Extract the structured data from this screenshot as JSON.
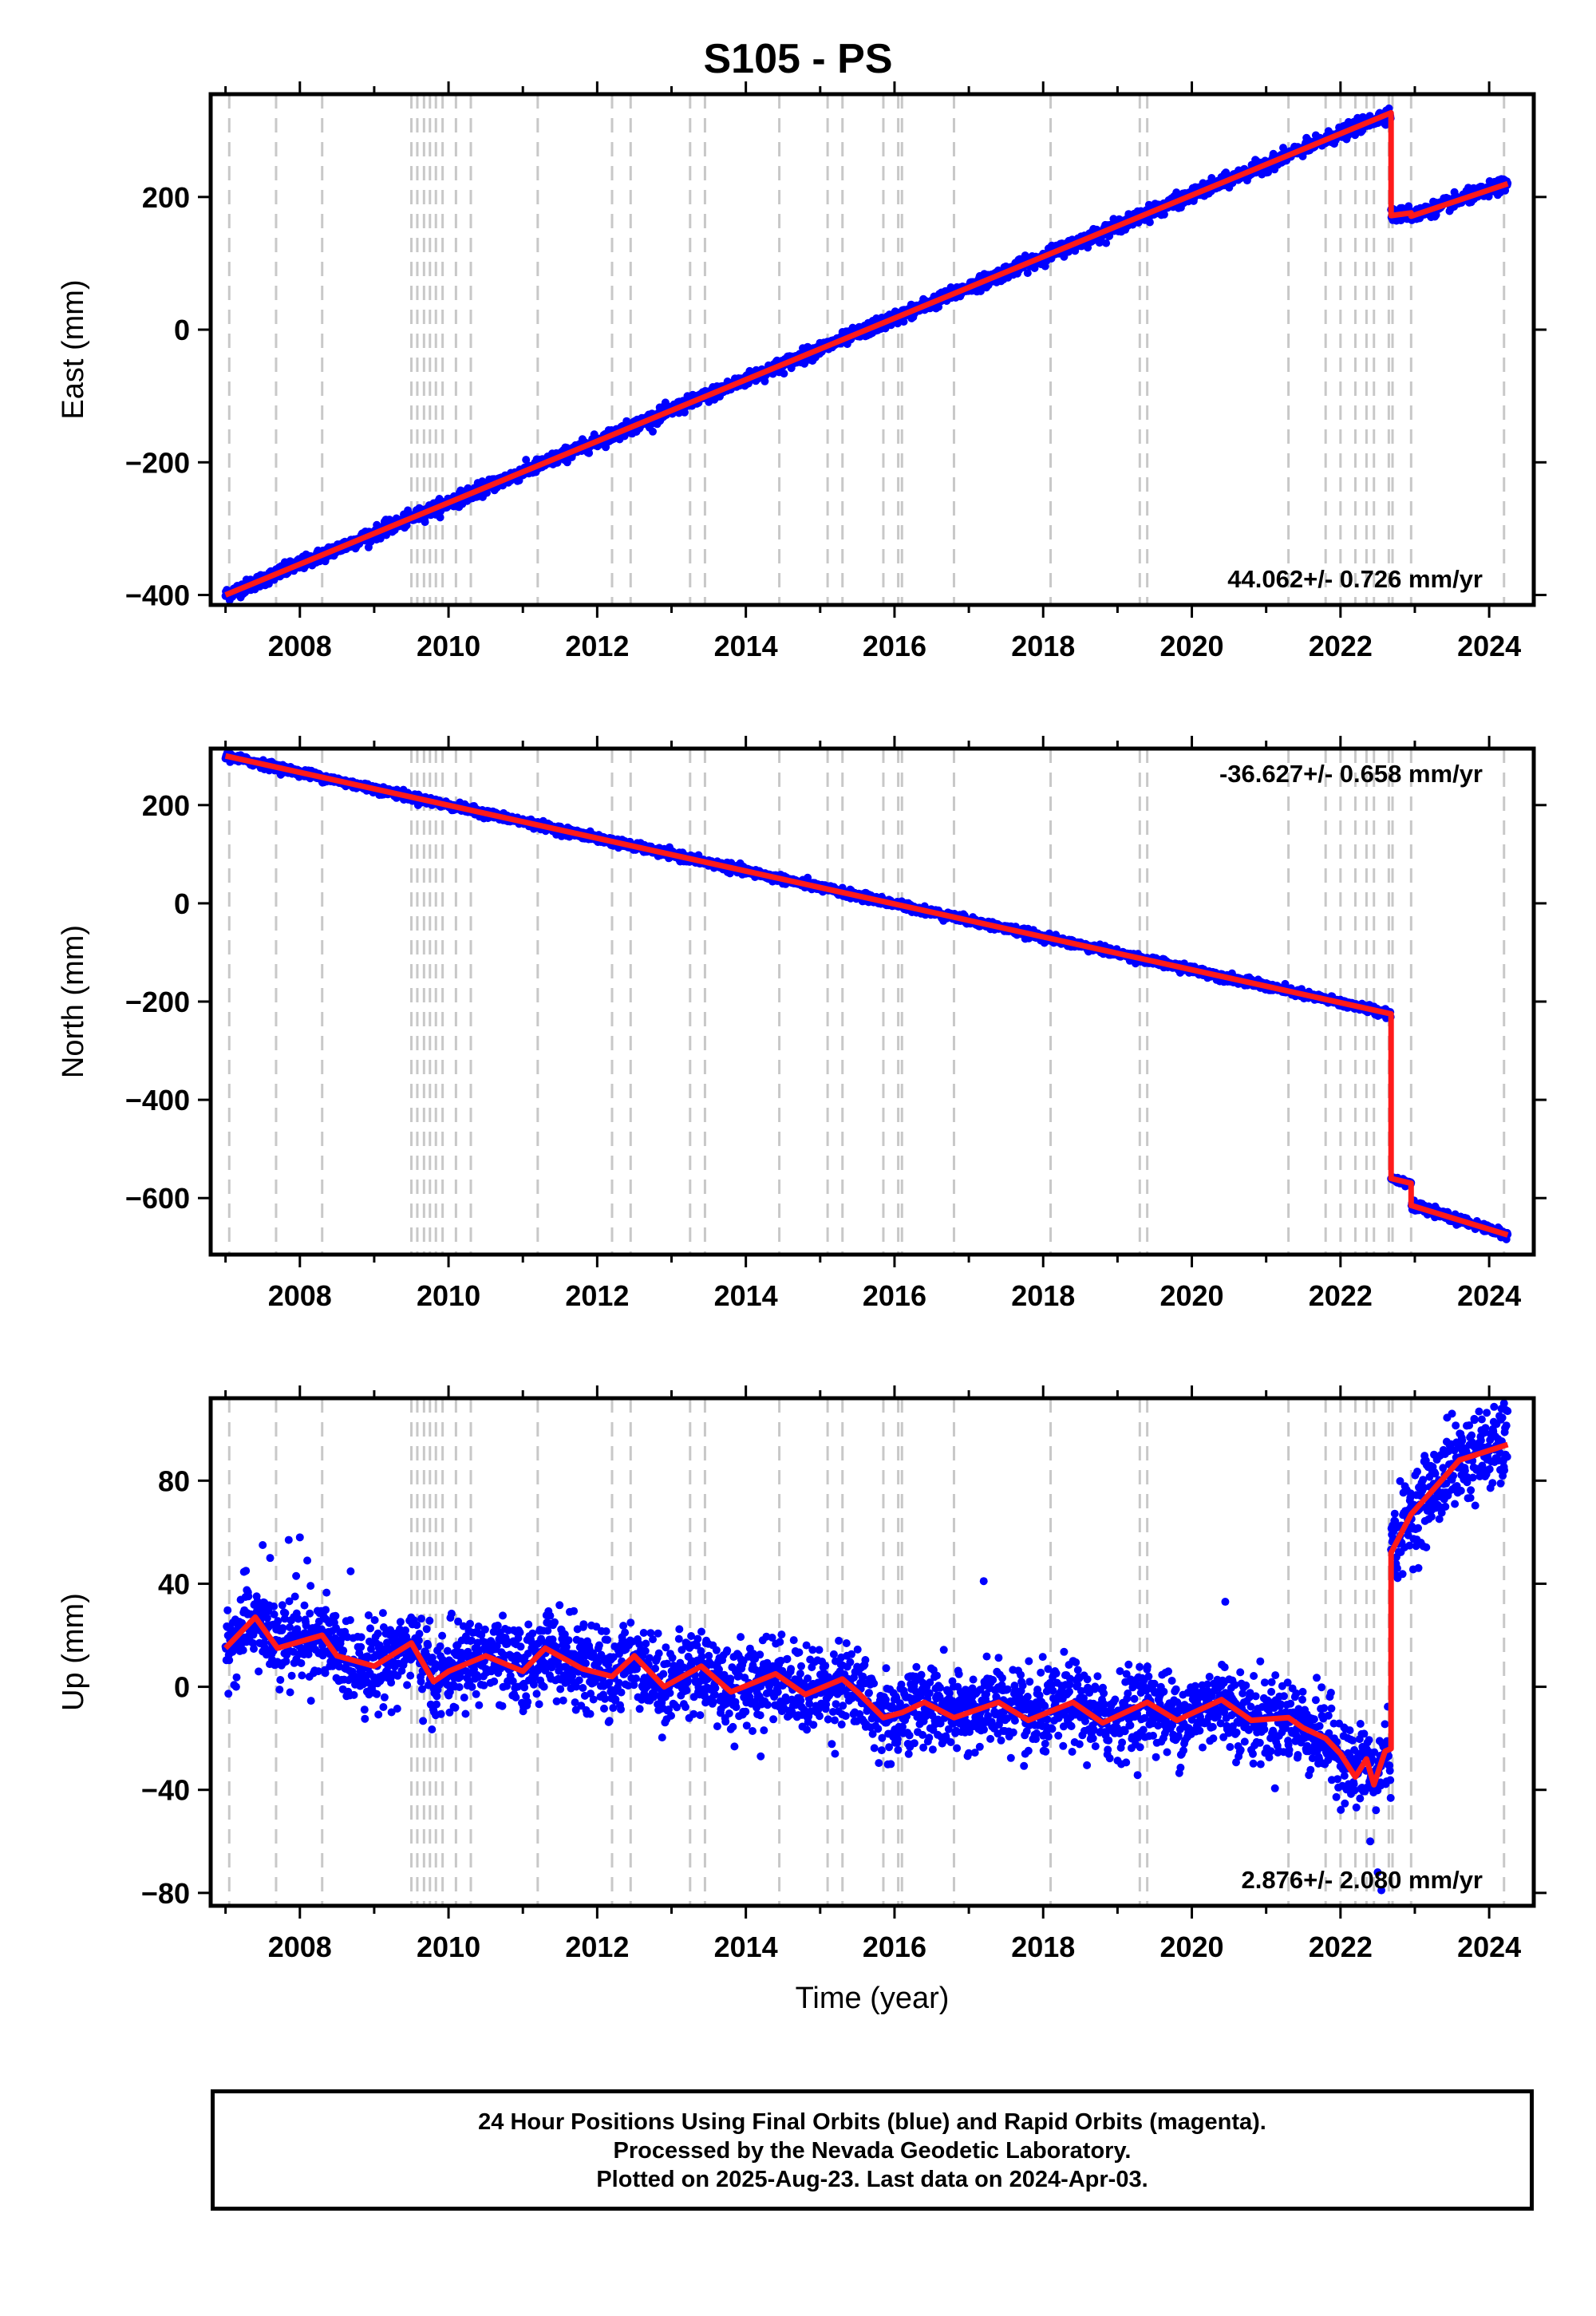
{
  "title": "S105 - PS",
  "footer": {
    "line1": "24 Hour Positions Using Final Orbits (blue) and Rapid Orbits (magenta).",
    "line2": "Processed by the Nevada Geodetic Laboratory.",
    "line3": "Plotted on 2025-Aug-23. Last data on 2024-Apr-03."
  },
  "colors": {
    "points": "#0000ff",
    "fit": "#ff1a1a",
    "event_lines": "#c8c8c8",
    "axes": "#000000"
  },
  "chart_data": [
    {
      "type": "scatter",
      "panel": "east",
      "xlabel": "",
      "ylabel": "East (mm)",
      "xlim": [
        2006.8,
        2024.6
      ],
      "ylim": [
        -415,
        355
      ],
      "xticks": [
        2008,
        2010,
        2012,
        2014,
        2016,
        2018,
        2020,
        2022,
        2024
      ],
      "yticks": [
        -400,
        -200,
        0,
        200
      ],
      "rate_label": "44.062+/- 0.726 mm/yr",
      "rate_position": "bottom-right",
      "events": [
        2007.05,
        2007.68,
        2008.3,
        2009.5,
        2009.58,
        2009.67,
        2009.75,
        2009.83,
        2009.92,
        2010.1,
        2010.3,
        2011.2,
        2012.2,
        2012.45,
        2013.25,
        2013.45,
        2014.45,
        2015.1,
        2015.3,
        2015.85,
        2016.05,
        2016.1,
        2016.8,
        2018.1,
        2019.3,
        2019.4,
        2021.3,
        2021.8,
        2022.0,
        2022.2,
        2022.35,
        2022.45,
        2022.65,
        2022.7,
        2022.95,
        2024.2
      ],
      "fit": {
        "x": [
          2007.0,
          2022.68,
          2022.68,
          2022.95,
          2022.95,
          2024.25
        ],
        "y": [
          -400,
          327,
          172,
          176,
          171,
          220
        ]
      },
      "noise_mm": 5
    },
    {
      "type": "scatter",
      "panel": "north",
      "xlabel": "",
      "ylabel": "North (mm)",
      "xlim": [
        2006.8,
        2024.6
      ],
      "ylim": [
        -715,
        315
      ],
      "xticks": [
        2008,
        2010,
        2012,
        2014,
        2016,
        2018,
        2020,
        2022,
        2024
      ],
      "yticks": [
        -600,
        -400,
        -200,
        0,
        200
      ],
      "rate_label": "-36.627+/- 0.658 mm/yr",
      "rate_position": "top-right",
      "events": [
        2007.05,
        2007.68,
        2008.3,
        2009.5,
        2009.58,
        2009.67,
        2009.75,
        2009.83,
        2009.92,
        2010.1,
        2010.3,
        2011.2,
        2012.2,
        2012.45,
        2013.25,
        2013.45,
        2014.45,
        2015.1,
        2015.3,
        2015.85,
        2016.05,
        2016.1,
        2016.8,
        2018.1,
        2019.3,
        2019.4,
        2021.3,
        2021.8,
        2022.0,
        2022.2,
        2022.35,
        2022.45,
        2022.65,
        2022.7,
        2022.95,
        2024.2
      ],
      "fit": {
        "x": [
          2007.0,
          2022.68,
          2022.68,
          2022.95,
          2022.95,
          2024.25
        ],
        "y": [
          300,
          -225,
          -560,
          -570,
          -615,
          -675
        ]
      },
      "noise_mm": 4
    },
    {
      "type": "scatter",
      "panel": "up",
      "xlabel": "Time (year)",
      "ylabel": "Up (mm)",
      "xlim": [
        2006.8,
        2024.6
      ],
      "ylim": [
        -85,
        112
      ],
      "xticks": [
        2008,
        2010,
        2012,
        2014,
        2016,
        2018,
        2020,
        2022,
        2024
      ],
      "yticks": [
        -80,
        -40,
        0,
        40,
        80
      ],
      "rate_label": "2.876+/- 2.080 mm/yr",
      "rate_position": "bottom-right",
      "events": [
        2007.05,
        2007.68,
        2008.3,
        2009.5,
        2009.58,
        2009.67,
        2009.75,
        2009.83,
        2009.92,
        2010.1,
        2010.3,
        2011.2,
        2012.2,
        2012.45,
        2013.25,
        2013.45,
        2014.45,
        2015.1,
        2015.3,
        2015.85,
        2016.05,
        2016.1,
        2016.8,
        2018.1,
        2019.3,
        2019.4,
        2021.3,
        2021.8,
        2022.0,
        2022.2,
        2022.35,
        2022.45,
        2022.65,
        2022.7,
        2022.95,
        2024.2
      ],
      "fit": {
        "x": [
          2007.0,
          2007.4,
          2007.7,
          2008.3,
          2008.5,
          2009.0,
          2009.5,
          2009.8,
          2010.0,
          2010.5,
          2011.0,
          2011.3,
          2011.8,
          2012.2,
          2012.5,
          2012.9,
          2013.4,
          2013.8,
          2014.4,
          2014.8,
          2015.3,
          2015.5,
          2015.85,
          2016.1,
          2016.4,
          2016.8,
          2017.4,
          2017.8,
          2018.4,
          2018.8,
          2019.4,
          2019.8,
          2020.4,
          2020.8,
          2021.3,
          2021.5,
          2021.8,
          2022.0,
          2022.2,
          2022.35,
          2022.45,
          2022.6,
          2022.68,
          2022.68,
          2022.95,
          2023.2,
          2023.6,
          2024.25
        ],
        "y": [
          15,
          27,
          15,
          20,
          12,
          8,
          17,
          2,
          6,
          12,
          6,
          15,
          7,
          4,
          12,
          0,
          8,
          -2,
          5,
          -3,
          3,
          -2,
          -12,
          -10,
          -6,
          -12,
          -6,
          -13,
          -6,
          -14,
          -6,
          -13,
          -5,
          -13,
          -12,
          -16,
          -20,
          -26,
          -35,
          -28,
          -38,
          -25,
          -24,
          52,
          67,
          75,
          88,
          94
        ]
      },
      "noise_mm": 8,
      "outliers": [
        {
          "x": 2007.5,
          "y": 55
        },
        {
          "x": 2007.6,
          "y": 50
        },
        {
          "x": 2007.85,
          "y": 57
        },
        {
          "x": 2007.95,
          "y": 43
        },
        {
          "x": 2008.0,
          "y": 58
        },
        {
          "x": 2008.1,
          "y": 49
        },
        {
          "x": 2017.2,
          "y": 41
        },
        {
          "x": 2020.45,
          "y": 33
        },
        {
          "x": 2022.4,
          "y": -60
        },
        {
          "x": 2022.5,
          "y": -72
        },
        {
          "x": 2022.55,
          "y": -79
        },
        {
          "x": 2023.5,
          "y": 106
        },
        {
          "x": 2023.8,
          "y": 104
        },
        {
          "x": 2024.1,
          "y": 102
        },
        {
          "x": 2024.2,
          "y": 110
        },
        {
          "x": 2014.2,
          "y": -27
        },
        {
          "x": 2015.95,
          "y": -30
        },
        {
          "x": 2015.2,
          "y": -26
        }
      ]
    }
  ]
}
